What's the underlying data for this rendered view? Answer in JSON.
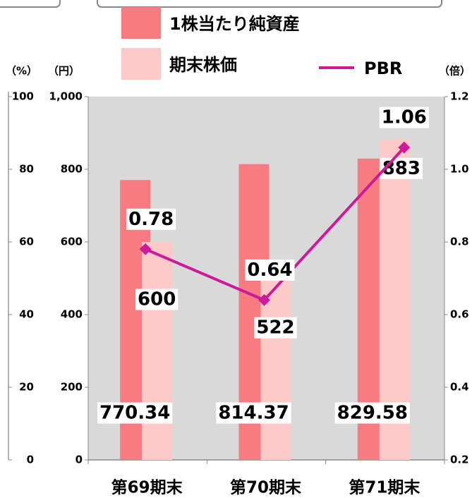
{
  "chart_data": {
    "type": "bar",
    "categories": [
      "第69期末",
      "第70期末",
      "第71期末"
    ],
    "series": [
      {
        "name": "1株当たり純資産",
        "color": "#f77b80",
        "values": [
          770.34,
          814.37,
          829.58
        ]
      },
      {
        "name": "期末株価",
        "color": "#fdc9c9",
        "values": [
          600,
          522,
          883
        ]
      },
      {
        "name": "PBR",
        "type": "line",
        "axis": "y2",
        "color": "#cc1a99",
        "values": [
          0.78,
          0.64,
          1.06
        ]
      }
    ],
    "ylabel": "（円）",
    "ylim": [
      0,
      1000
    ],
    "yticks": [
      0,
      200,
      400,
      600,
      800,
      {
        "value": 1000,
        "label": "1,000"
      }
    ],
    "y2label": "（倍）",
    "y2lim": [
      0.2,
      1.2
    ],
    "y2ticks": [
      0.2,
      0.4,
      0.6,
      0.8,
      {
        "value": 1,
        "label": "1.0"
      },
      1.2
    ],
    "y3label": "（%）",
    "y3lim": [
      0,
      100
    ],
    "y3ticks": [
      0,
      20,
      40,
      60,
      80,
      100
    ],
    "plot_background": "#d9d9d9"
  }
}
